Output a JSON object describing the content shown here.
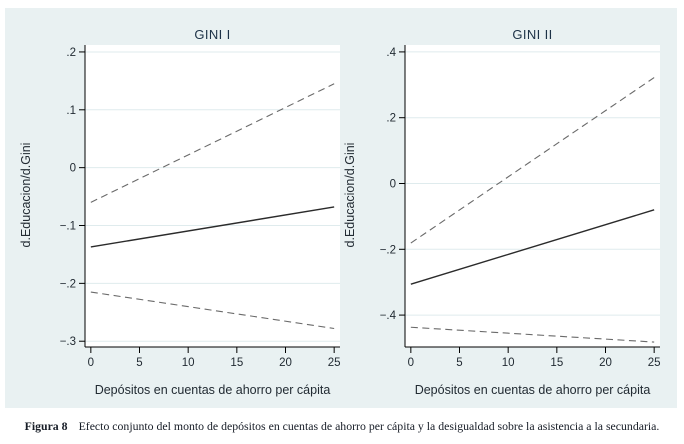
{
  "figure": {
    "caption_label": "Figura 8",
    "caption_text": "Efecto conjunto del monto de depósitos en cuentas de ahorro per cápita y la desigualdad sobre la asistencia a la secundaria."
  },
  "colors": {
    "graph_region_bg": "#e9f1f2",
    "plot_bg": "#ffffff",
    "gridline": "#dfebed",
    "axis": "#000000",
    "tick_text": "#222b33",
    "title_text": "#1d3247",
    "solid_line": "#2b2b2b",
    "dashed_line": "#6a6a6a"
  },
  "chart_data": [
    {
      "type": "line",
      "title": "GINI I",
      "xlabel": "Depósitos en cuentas de ahorro per cápita",
      "ylabel": "d.Educacion/d.Gini",
      "xlim": [
        -0.6,
        25.6
      ],
      "ylim": [
        -0.31,
        0.212
      ],
      "xticks": [
        0,
        5,
        10,
        15,
        20,
        25
      ],
      "xtick_labels": [
        "0",
        "5",
        "10",
        "15",
        "20",
        "25"
      ],
      "yticks": [
        0.2,
        0.1,
        0,
        -0.1,
        -0.2,
        -0.3
      ],
      "ytick_labels": [
        ".2",
        ".1",
        "0",
        "−.1",
        "−.2",
        "−.3"
      ],
      "grid": true,
      "legend": "none",
      "series": [
        {
          "name": "upper-dashed-line",
          "style": "dashed",
          "x": [
            0,
            25
          ],
          "y": [
            -0.06,
            0.145
          ]
        },
        {
          "name": "solid-line",
          "style": "solid",
          "x": [
            0,
            25
          ],
          "y": [
            -0.137,
            -0.068
          ]
        },
        {
          "name": "lower-dashed-line",
          "style": "dashed",
          "x": [
            0,
            25
          ],
          "y": [
            -0.215,
            -0.278
          ]
        }
      ]
    },
    {
      "type": "line",
      "title": "GINI II",
      "xlabel": "Depósitos en cuentas de ahorro per cápita",
      "ylabel": "d.Educacion/d.Gini",
      "xlim": [
        -0.6,
        25.6
      ],
      "ylim": [
        -0.497,
        0.421
      ],
      "xticks": [
        0,
        5,
        10,
        15,
        20,
        25
      ],
      "xtick_labels": [
        "0",
        "5",
        "10",
        "15",
        "20",
        "25"
      ],
      "yticks": [
        0.4,
        0.2,
        0,
        -0.2,
        -0.4
      ],
      "ytick_labels": [
        ".4",
        ".2",
        "0",
        "−.2",
        "−.4"
      ],
      "grid": true,
      "legend": "none",
      "series": [
        {
          "name": "upper-dashed-line",
          "style": "dashed",
          "x": [
            0,
            25
          ],
          "y": [
            -0.181,
            0.322
          ]
        },
        {
          "name": "solid-line",
          "style": "solid",
          "x": [
            0,
            25
          ],
          "y": [
            -0.306,
            -0.08
          ]
        },
        {
          "name": "lower-dashed-line",
          "style": "dashed",
          "x": [
            0,
            25
          ],
          "y": [
            -0.437,
            -0.482
          ]
        }
      ]
    }
  ]
}
